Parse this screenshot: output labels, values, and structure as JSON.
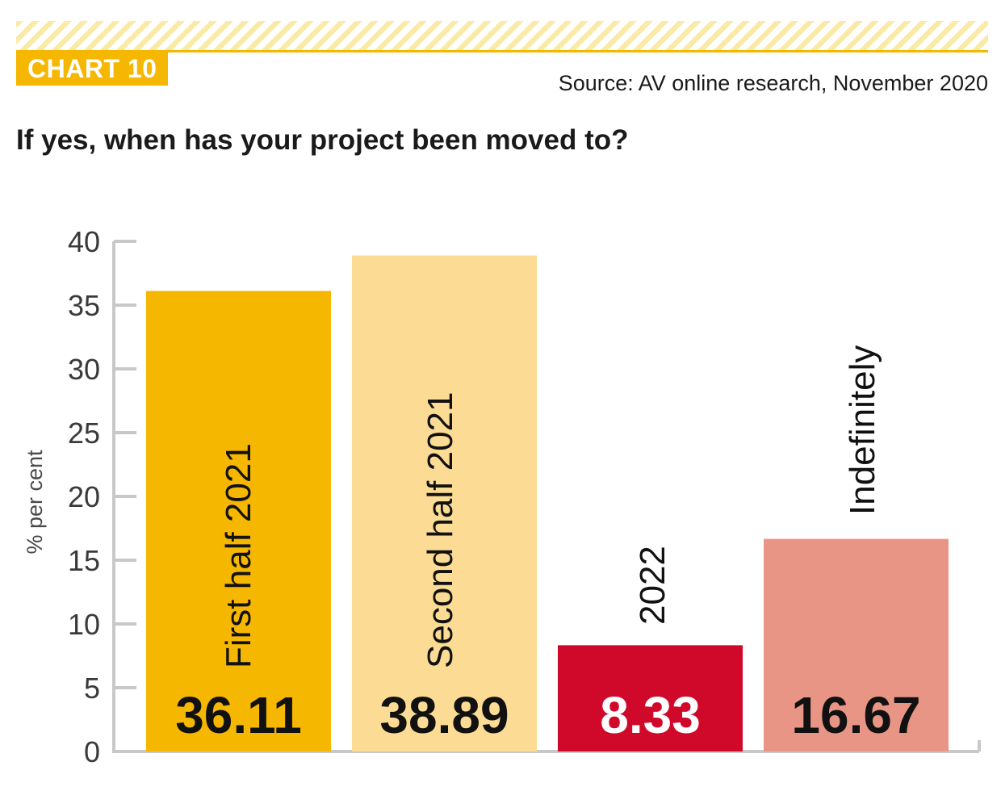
{
  "header": {
    "badge": "CHART 10",
    "source": "Source: AV online research, November 2020",
    "question": "If yes, when has your project been moved to?"
  },
  "colors": {
    "accent": "#f6b700",
    "stripe": "#fbe9a6"
  },
  "chart_data": {
    "type": "bar",
    "title": "If yes, when has your project been moved to?",
    "xlabel": "",
    "ylabel": "% per cent",
    "ylim": [
      0,
      40
    ],
    "yticks": [
      0,
      5,
      10,
      15,
      20,
      25,
      30,
      35,
      40
    ],
    "categories": [
      "First half 2021",
      "Second half 2021",
      "2022",
      "Indefinitely"
    ],
    "values": [
      36.11,
      38.89,
      8.33,
      16.67
    ],
    "value_labels": [
      "36.11",
      "38.89",
      "8.33",
      "16.67"
    ],
    "bar_colors": [
      "#f6b700",
      "#fcdc94",
      "#d0092b",
      "#e99585"
    ],
    "value_text_colors": [
      "#111111",
      "#111111",
      "#ffffff",
      "#111111"
    ]
  }
}
